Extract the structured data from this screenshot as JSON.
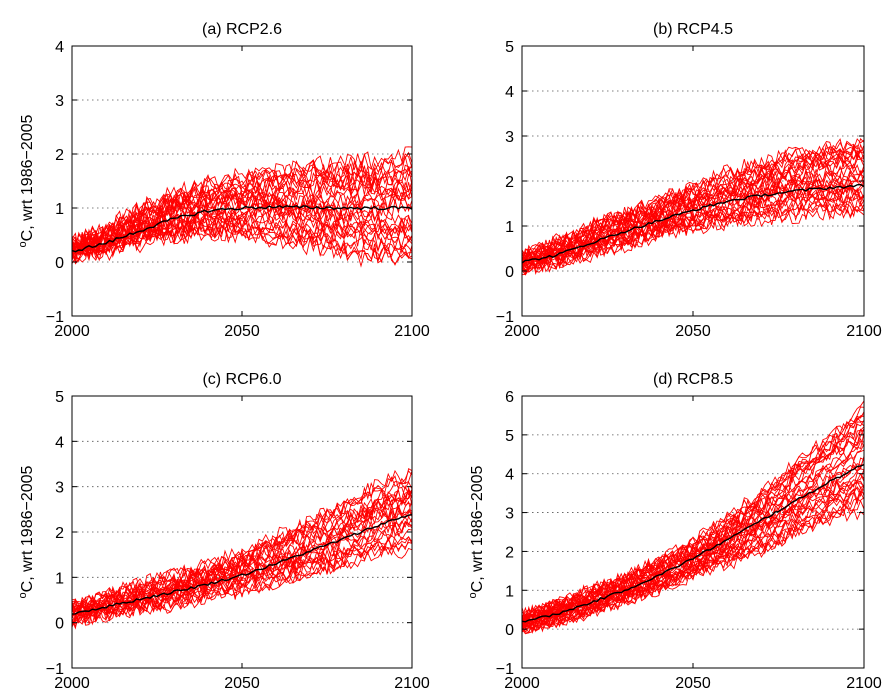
{
  "colors": {
    "model_runs": "#ff0000",
    "ensemble_mean": "#000000",
    "grid": "#555555",
    "axes": "#000000"
  },
  "chart_data": [
    {
      "type": "line",
      "title": "(a) RCP2.6",
      "ylabel": "oC, wrt 1986−2005",
      "xlim": [
        2000,
        2100
      ],
      "ylim": [
        -1,
        4
      ],
      "x_ticks": [
        "2000",
        "2050",
        "2100"
      ],
      "y_ticks": [
        "−1",
        "0",
        "1",
        "2",
        "3",
        "4"
      ],
      "grid": "horizontal dotted",
      "n_model_runs": 32,
      "ensemble_mean": {
        "x": [
          2000,
          2010,
          2020,
          2030,
          2040,
          2050,
          2060,
          2070,
          2080,
          2090,
          2100
        ],
        "y": [
          0.2,
          0.35,
          0.58,
          0.8,
          0.95,
          1.0,
          1.02,
          1.01,
          1.0,
          1.0,
          1.0
        ]
      },
      "spread": {
        "x": [
          2000,
          2010,
          2020,
          2030,
          2040,
          2050,
          2060,
          2070,
          2080,
          2090,
          2100
        ],
        "low": [
          0.1,
          0.2,
          0.35,
          0.45,
          0.5,
          0.5,
          0.4,
          0.25,
          0.1,
          0.05,
          0.0
        ],
        "high": [
          0.35,
          0.6,
          1.0,
          1.25,
          1.45,
          1.6,
          1.7,
          1.8,
          1.85,
          1.9,
          2.05
        ]
      }
    },
    {
      "type": "line",
      "title": "(b) RCP4.5",
      "ylabel": "",
      "xlim": [
        2000,
        2100
      ],
      "ylim": [
        -1,
        5
      ],
      "x_ticks": [
        "2000",
        "2050",
        "2100"
      ],
      "y_ticks": [
        "−1",
        "0",
        "1",
        "2",
        "3",
        "4",
        "5"
      ],
      "grid": "horizontal dotted",
      "n_model_runs": 32,
      "ensemble_mean": {
        "x": [
          2000,
          2010,
          2020,
          2030,
          2040,
          2050,
          2060,
          2070,
          2080,
          2090,
          2100
        ],
        "y": [
          0.2,
          0.35,
          0.62,
          0.88,
          1.12,
          1.35,
          1.55,
          1.68,
          1.78,
          1.85,
          1.9
        ]
      },
      "spread": {
        "x": [
          2000,
          2010,
          2020,
          2030,
          2040,
          2050,
          2060,
          2070,
          2080,
          2090,
          2100
        ],
        "low": [
          0.05,
          0.15,
          0.35,
          0.55,
          0.8,
          0.95,
          1.05,
          1.15,
          1.2,
          1.25,
          1.3
        ],
        "high": [
          0.35,
          0.65,
          1.0,
          1.3,
          1.6,
          1.9,
          2.2,
          2.45,
          2.65,
          2.8,
          2.9
        ]
      }
    },
    {
      "type": "line",
      "title": "(c) RCP6.0",
      "ylabel": "oC, wrt 1986−2005",
      "xlim": [
        2000,
        2100
      ],
      "ylim": [
        -1,
        5
      ],
      "x_ticks": [
        "2000",
        "2050",
        "2100"
      ],
      "y_ticks": [
        "−1",
        "0",
        "1",
        "2",
        "3",
        "4",
        "5"
      ],
      "grid": "horizontal dotted",
      "n_model_runs": 28,
      "ensemble_mean": {
        "x": [
          2000,
          2010,
          2020,
          2030,
          2040,
          2050,
          2060,
          2070,
          2080,
          2090,
          2100
        ],
        "y": [
          0.2,
          0.35,
          0.52,
          0.68,
          0.85,
          1.05,
          1.3,
          1.58,
          1.85,
          2.15,
          2.4
        ]
      },
      "spread": {
        "x": [
          2000,
          2010,
          2020,
          2030,
          2040,
          2050,
          2060,
          2070,
          2080,
          2090,
          2100
        ],
        "low": [
          0.05,
          0.15,
          0.3,
          0.4,
          0.55,
          0.7,
          0.85,
          1.05,
          1.25,
          1.5,
          1.6
        ],
        "high": [
          0.35,
          0.6,
          0.85,
          1.05,
          1.3,
          1.55,
          1.9,
          2.25,
          2.65,
          3.05,
          3.35
        ]
      }
    },
    {
      "type": "line",
      "title": "(d) RCP8.5",
      "ylabel": "oC, wrt 1986−2005",
      "xlim": [
        2000,
        2100
      ],
      "ylim": [
        -1,
        6
      ],
      "x_ticks": [
        "2000",
        "2050",
        "2100"
      ],
      "y_ticks": [
        "−1",
        "0",
        "1",
        "2",
        "3",
        "4",
        "5",
        "6"
      ],
      "grid": "horizontal dotted",
      "n_model_runs": 36,
      "ensemble_mean": {
        "x": [
          2000,
          2010,
          2020,
          2030,
          2040,
          2050,
          2060,
          2070,
          2080,
          2090,
          2100
        ],
        "y": [
          0.2,
          0.38,
          0.68,
          1.0,
          1.38,
          1.82,
          2.3,
          2.8,
          3.3,
          3.8,
          4.25
        ]
      },
      "spread": {
        "x": [
          2000,
          2010,
          2020,
          2030,
          2040,
          2050,
          2060,
          2070,
          2080,
          2090,
          2100
        ],
        "low": [
          0.0,
          0.15,
          0.4,
          0.7,
          1.0,
          1.35,
          1.65,
          2.0,
          2.45,
          2.8,
          3.0
        ],
        "high": [
          0.4,
          0.7,
          1.0,
          1.35,
          1.75,
          2.25,
          2.9,
          3.55,
          4.3,
          5.0,
          5.8
        ]
      }
    }
  ]
}
